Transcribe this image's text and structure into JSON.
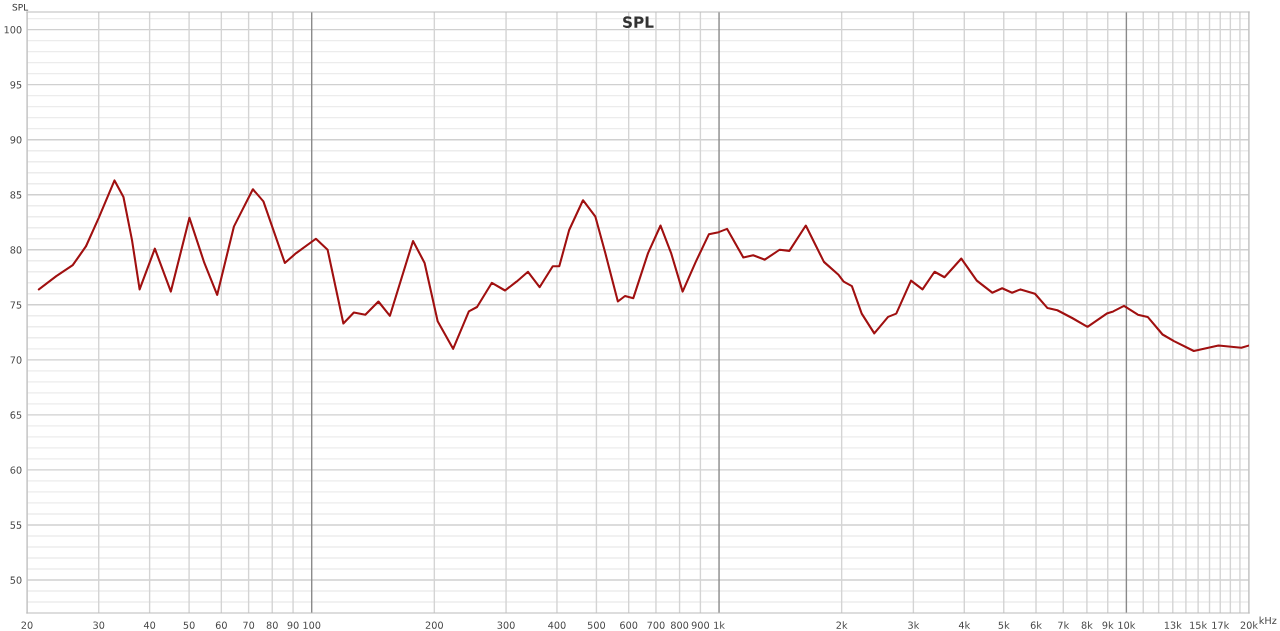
{
  "chart_data": {
    "type": "line",
    "title": "SPL",
    "ylabel": "SPL",
    "x": [
      21.4,
      23.6,
      25.9,
      27.9,
      30.0,
      32.8,
      34.5,
      36.2,
      37.8,
      41.2,
      45.1,
      50.1,
      54.5,
      58.6,
      64.4,
      71.7,
      76.1,
      85.9,
      91.6,
      102.4,
      109.4,
      119.6,
      126.9,
      135.4,
      145.8,
      155.6,
      177.3,
      189.3,
      203.8,
      222.4,
      243.1,
      254.6,
      276.9,
      298.3,
      318.2,
      339.6,
      362.6,
      390.6,
      405.3,
      428.6,
      463.4,
      497.1,
      525.7,
      564.4,
      587.7,
      615.9,
      669.4,
      718.4,
      762.6,
      814.0,
      876.6,
      944,
      998,
      1046,
      1147,
      1213,
      1295,
      1408,
      1488,
      1633,
      1809,
      1967,
      2023,
      2119,
      2240,
      2405,
      2600,
      2723,
      2960,
      3159,
      3381,
      3577,
      3934,
      4293,
      4685,
      4955,
      5241,
      5497,
      5965,
      6403,
      6769,
      7360,
      8028,
      8948,
      9285,
      9867,
      10670,
      11280,
      12270,
      13090,
      14640,
      16830,
      19150,
      20000
    ],
    "series": [
      {
        "color": "#a01010",
        "values": [
          76.4,
          77.6,
          78.6,
          80.3,
          82.9,
          86.3,
          84.8,
          80.9,
          76.4,
          80.1,
          76.2,
          82.9,
          78.8,
          75.9,
          82.1,
          85.5,
          84.4,
          78.8,
          79.7,
          81.0,
          80.0,
          73.3,
          74.3,
          74.1,
          75.3,
          74.0,
          80.8,
          78.8,
          73.5,
          71.0,
          74.4,
          74.8,
          77.0,
          76.3,
          77.1,
          78.0,
          76.6,
          78.5,
          78.5,
          81.8,
          84.5,
          83.0,
          79.7,
          75.3,
          75.8,
          75.6,
          79.7,
          82.2,
          79.7,
          76.2,
          78.9,
          81.4,
          81.6,
          81.9,
          79.3,
          79.5,
          79.1,
          80.0,
          79.9,
          82.2,
          78.9,
          77.7,
          77.1,
          76.7,
          74.2,
          72.4,
          73.9,
          74.2,
          77.2,
          76.4,
          78.0,
          77.5,
          79.2,
          77.2,
          76.1,
          76.5,
          76.1,
          76.4,
          76.0,
          74.7,
          74.5,
          73.8,
          73.0,
          74.2,
          74.4,
          74.9,
          74.1,
          73.9,
          72.3,
          71.7,
          70.8,
          71.3,
          71.1,
          71.3
        ]
      }
    ],
    "log": "x",
    "xlim": [
      20,
      20000
    ],
    "ylim": [
      47,
      101.6
    ],
    "xticks": [
      20,
      30,
      40,
      50,
      60,
      70,
      80,
      90,
      100,
      200,
      300,
      400,
      500,
      600,
      700,
      800,
      900,
      {
        "value": 1000,
        "label": "1k"
      },
      {
        "value": 2000,
        "label": "2k"
      },
      {
        "value": 3000,
        "label": "3k"
      },
      {
        "value": 4000,
        "label": "4k"
      },
      {
        "value": 5000,
        "label": "5k"
      },
      {
        "value": 6000,
        "label": "6k"
      },
      {
        "value": 7000,
        "label": "7k"
      },
      {
        "value": 8000,
        "label": "8k"
      },
      {
        "value": 9000,
        "label": "9k"
      },
      {
        "value": 10000,
        "label": "10k"
      },
      {
        "value": 11000,
        "label": null
      },
      {
        "value": 12000,
        "label": null
      },
      {
        "value": 13000,
        "label": "13k"
      },
      {
        "value": 14000,
        "label": null
      },
      {
        "value": 15000,
        "label": "15k"
      },
      {
        "value": 16000,
        "label": null
      },
      {
        "value": 17000,
        "label": "17k"
      },
      {
        "value": 18000,
        "label": null
      },
      {
        "value": 19000,
        "label": null
      },
      {
        "value": 20000,
        "label": "20k"
      }
    ],
    "xlabel": "kHz",
    "yticks": [
      50,
      55,
      60,
      65,
      70,
      75,
      80,
      85,
      90,
      95,
      100
    ],
    "grid": true,
    "legend": false,
    "marker": "none",
    "line_style": "solid"
  }
}
